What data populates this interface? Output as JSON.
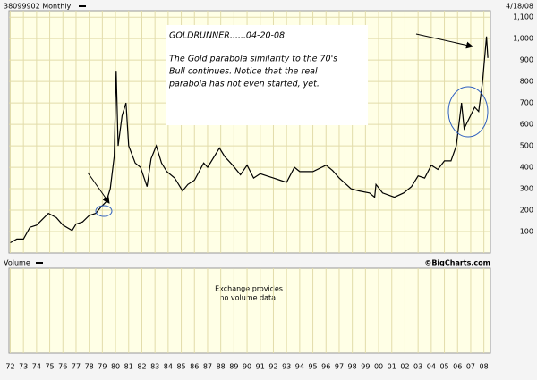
{
  "chart_data": {
    "type": "line",
    "title": "38099902 Monthly",
    "date": "4/18/08",
    "annotation": [
      "GOLDRUNNER......04-20-08",
      "The Gold parabola similarity to the 70's",
      "Bull continues.  Notice that the real",
      "parabola has not even started, yet."
    ],
    "volume_label": "Volume",
    "credit": "©BigCharts.com",
    "volume_note": [
      "Exchange provides",
      "no volume data."
    ],
    "color": "#000000",
    "grid": true,
    "xlim": [
      1971.9,
      2008.5
    ],
    "ylim": [
      0,
      1130
    ],
    "yticks": [
      100,
      200,
      300,
      400,
      500,
      600,
      700,
      800,
      900,
      {
        "value": 1000,
        "label": "1,000"
      },
      {
        "value": 1100,
        "label": "1,100"
      }
    ],
    "xticks": [
      {
        "value": 1972,
        "label": "72"
      },
      {
        "value": 1973,
        "label": "73"
      },
      {
        "value": 1974,
        "label": "74"
      },
      {
        "value": 1975,
        "label": "75"
      },
      {
        "value": 1976,
        "label": "76"
      },
      {
        "value": 1977,
        "label": "77"
      },
      {
        "value": 1978,
        "label": "78"
      },
      {
        "value": 1979,
        "label": "79"
      },
      {
        "value": 1980,
        "label": "80"
      },
      {
        "value": 1981,
        "label": "81"
      },
      {
        "value": 1982,
        "label": "82"
      },
      {
        "value": 1983,
        "label": "83"
      },
      {
        "value": 1984,
        "label": "84"
      },
      {
        "value": 1985,
        "label": "85"
      },
      {
        "value": 1986,
        "label": "86"
      },
      {
        "value": 1987,
        "label": "87"
      },
      {
        "value": 1988,
        "label": "88"
      },
      {
        "value": 1989,
        "label": "89"
      },
      {
        "value": 1990,
        "label": "90"
      },
      {
        "value": 1991,
        "label": "91"
      },
      {
        "value": 1992,
        "label": "92"
      },
      {
        "value": 1993,
        "label": "93"
      },
      {
        "value": 1994,
        "label": "94"
      },
      {
        "value": 1995,
        "label": "95"
      },
      {
        "value": 1996,
        "label": "96"
      },
      {
        "value": 1997,
        "label": "97"
      },
      {
        "value": 1998,
        "label": "98"
      },
      {
        "value": 1999,
        "label": "99"
      },
      {
        "value": 2000,
        "label": "00"
      },
      {
        "value": 2001,
        "label": "01"
      },
      {
        "value": 2002,
        "label": "02"
      },
      {
        "value": 2003,
        "label": "03"
      },
      {
        "value": 2004,
        "label": "04"
      },
      {
        "value": 2005,
        "label": "05"
      },
      {
        "value": 2006,
        "label": "06"
      },
      {
        "value": 2007,
        "label": "07"
      },
      {
        "value": 2008,
        "label": "08"
      }
    ],
    "x": [
      1972,
      1972.5,
      1973,
      1973.5,
      1974,
      1974.9,
      1975.5,
      1976,
      1976.7,
      1977,
      1977.5,
      1978,
      1978.5,
      1978.9,
      1979.3,
      1979.6,
      1979.9,
      1980.05,
      1980.2,
      1980.5,
      1980.8,
      1981,
      1981.5,
      1981.9,
      1982.4,
      1982.7,
      1983.1,
      1983.5,
      1983.9,
      1984.5,
      1985.1,
      1985.5,
      1986,
      1986.7,
      1987,
      1987.9,
      1988.3,
      1988.9,
      1989.5,
      1990,
      1990.5,
      1991,
      1991.5,
      1992,
      1992.5,
      1993,
      1993.6,
      1994,
      1995,
      1996,
      1996.5,
      1997,
      1997.9,
      1998.5,
      1999.3,
      1999.7,
      1999.8,
      2000.3,
      2001.2,
      2001.9,
      2002.5,
      2003,
      2003.5,
      2004,
      2004.5,
      2005,
      2005.5,
      2005.9,
      2006.3,
      2006.5,
      2006.9,
      2007.3,
      2007.6,
      2007.9,
      2008.2,
      2008.3
    ],
    "values": [
      48,
      65,
      65,
      120,
      130,
      185,
      165,
      130,
      105,
      135,
      145,
      175,
      185,
      215,
      240,
      300,
      450,
      850,
      500,
      640,
      700,
      500,
      420,
      400,
      310,
      440,
      500,
      420,
      380,
      350,
      290,
      320,
      340,
      420,
      400,
      490,
      450,
      410,
      365,
      410,
      350,
      370,
      360,
      350,
      340,
      330,
      400,
      380,
      380,
      410,
      385,
      350,
      300,
      290,
      280,
      260,
      320,
      280,
      260,
      280,
      310,
      360,
      350,
      410,
      390,
      430,
      430,
      500,
      700,
      580,
      630,
      680,
      660,
      800,
      1010,
      910
    ]
  }
}
